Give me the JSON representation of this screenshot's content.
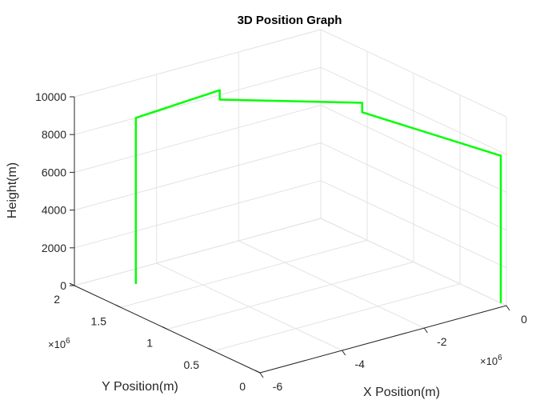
{
  "chart_data": {
    "type": "line",
    "projection": "3d",
    "title": "3D Position Graph",
    "xlabel": "X Position(m)",
    "ylabel": "Y Position(m)",
    "zlabel": "Height(m)",
    "x_multiplier": "×10^6",
    "y_multiplier": "×10^6",
    "x_exponent_base": "×10",
    "x_exponent_power": "6",
    "y_exponent_base": "×10",
    "y_exponent_power": "6",
    "xlim": [
      -6,
      0
    ],
    "ylim": [
      0,
      2
    ],
    "zlim": [
      0,
      10000
    ],
    "x_ticks": [
      -6,
      -4,
      -2,
      0
    ],
    "y_ticks": [
      0,
      0.5,
      1,
      1.5,
      2
    ],
    "z_ticks": [
      0,
      2000,
      4000,
      6000,
      8000,
      10000
    ],
    "x_tick_labels": [
      "-6",
      "-4",
      "-2",
      "0"
    ],
    "y_tick_labels": [
      "0",
      "0.5",
      "1",
      "1.5",
      "2"
    ],
    "z_tick_labels": [
      "0",
      "2000",
      "4000",
      "6000",
      "8000",
      "10000"
    ],
    "grid": true,
    "line_color": "#00ff00",
    "series": [
      {
        "x": [
          -5.0,
          -5.0,
          -2.8,
          -2.8,
          -0.71,
          -0.71,
          0,
          0
        ],
        "y": [
          1.78,
          1.78,
          1.85,
          1.85,
          1.24,
          1.24,
          0.06,
          0.06
        ],
        "z": [
          0,
          8800,
          8800,
          8300,
          8300,
          7800,
          7800,
          0
        ]
      }
    ]
  }
}
